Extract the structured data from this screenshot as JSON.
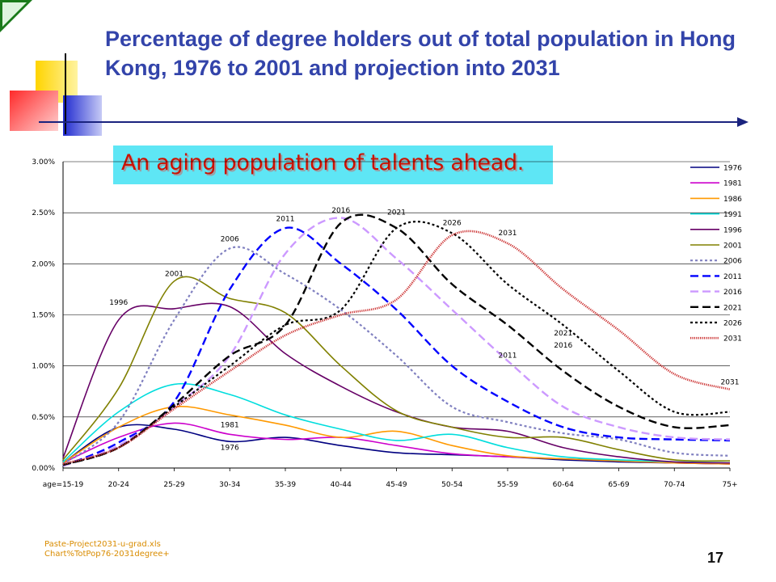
{
  "title": "Percentage of degree holders out of total population in Hong Kong, 1976 to 2001 and projection into 2031",
  "banner": "An aging population of talents ahead.",
  "source_lines": [
    "Paste-Project2031-u-grad.xls",
    "Chart%TotPop76-2031degree+"
  ],
  "page_number": "17",
  "chart_data": {
    "type": "line",
    "x": [
      "age=15-19",
      "20-24",
      "25-29",
      "30-34",
      "35-39",
      "40-44",
      "45-49",
      "50-54",
      "55-59",
      "60-64",
      "65-69",
      "70-74",
      "75+"
    ],
    "yticks": [
      "0.00%",
      "0.50%",
      "1.00%",
      "1.50%",
      "2.00%",
      "2.50%",
      "3.00%"
    ],
    "ylim": [
      0,
      3
    ],
    "y_unit": "%",
    "legend_position": "right",
    "series": [
      {
        "name": "1976",
        "color": "#000080",
        "dash": "solid",
        "values": [
          0.05,
          0.4,
          0.38,
          0.26,
          0.3,
          0.22,
          0.15,
          0.13,
          0.11,
          0.08,
          0.06,
          0.05,
          0.04
        ]
      },
      {
        "name": "1981",
        "color": "#cc00cc",
        "dash": "solid",
        "values": [
          0.05,
          0.3,
          0.44,
          0.33,
          0.28,
          0.3,
          0.22,
          0.14,
          0.11,
          0.09,
          0.07,
          0.05,
          0.04
        ]
      },
      {
        "name": "1986",
        "color": "#ff9900",
        "dash": "solid",
        "values": [
          0.05,
          0.4,
          0.6,
          0.52,
          0.42,
          0.3,
          0.36,
          0.22,
          0.12,
          0.09,
          0.07,
          0.05,
          0.04
        ]
      },
      {
        "name": "1991",
        "color": "#00dddd",
        "dash": "solid",
        "values": [
          0.06,
          0.55,
          0.82,
          0.72,
          0.52,
          0.38,
          0.27,
          0.33,
          0.2,
          0.11,
          0.08,
          0.06,
          0.05
        ]
      },
      {
        "name": "1996",
        "color": "#660066",
        "dash": "solid",
        "values": [
          0.1,
          1.45,
          1.56,
          1.58,
          1.12,
          0.8,
          0.55,
          0.4,
          0.36,
          0.2,
          0.11,
          0.06,
          0.05
        ]
      },
      {
        "name": "2001",
        "color": "#808000",
        "dash": "solid",
        "values": [
          0.08,
          0.78,
          1.83,
          1.66,
          1.52,
          1.0,
          0.56,
          0.4,
          0.3,
          0.3,
          0.18,
          0.08,
          0.07
        ]
      },
      {
        "name": "2006",
        "color": "#8080c0",
        "dash": "short",
        "values": [
          0.04,
          0.45,
          1.45,
          2.15,
          1.9,
          1.55,
          1.1,
          0.6,
          0.45,
          0.34,
          0.28,
          0.15,
          0.12
        ]
      },
      {
        "name": "2011",
        "color": "#0000ff",
        "dash": "long",
        "values": [
          0.02,
          0.25,
          0.65,
          1.75,
          2.35,
          2.0,
          1.55,
          1.0,
          0.65,
          0.4,
          0.3,
          0.28,
          0.27
        ]
      },
      {
        "name": "2016",
        "color": "#cc99ff",
        "dash": "long",
        "values": [
          0.02,
          0.22,
          0.6,
          1.1,
          2.1,
          2.45,
          2.05,
          1.55,
          1.05,
          0.6,
          0.4,
          0.3,
          0.28
        ]
      },
      {
        "name": "2021",
        "color": "#000000",
        "dash": "long",
        "values": [
          0.03,
          0.2,
          0.62,
          1.1,
          1.4,
          2.4,
          2.35,
          1.8,
          1.4,
          0.95,
          0.6,
          0.4,
          0.42
        ]
      },
      {
        "name": "2026",
        "color": "#000000",
        "dash": "short",
        "values": [
          0.03,
          0.2,
          0.6,
          1.0,
          1.4,
          1.55,
          2.35,
          2.3,
          1.8,
          1.4,
          0.95,
          0.55,
          0.55
        ]
      },
      {
        "name": "2031",
        "color": "#cc3333",
        "dash": "dotted",
        "values": [
          0.04,
          0.2,
          0.58,
          0.95,
          1.3,
          1.5,
          1.65,
          2.28,
          2.2,
          1.75,
          1.35,
          0.92,
          0.77
        ]
      }
    ],
    "annotations": [
      {
        "text": "1976",
        "x": 3,
        "y": 0.18
      },
      {
        "text": "1981",
        "x": 3,
        "y": 0.4
      },
      {
        "text": "1996",
        "x": 1,
        "y": 1.6
      },
      {
        "text": "2001",
        "x": 2,
        "y": 1.88
      },
      {
        "text": "2006",
        "x": 3,
        "y": 2.22
      },
      {
        "text": "2011",
        "x": 4,
        "y": 2.42
      },
      {
        "text": "2016",
        "x": 5,
        "y": 2.5
      },
      {
        "text": "2021",
        "x": 6,
        "y": 2.48
      },
      {
        "text": "2026",
        "x": 7,
        "y": 2.38
      },
      {
        "text": "2031",
        "x": 8,
        "y": 2.28
      },
      {
        "text": "2011",
        "x": 8,
        "y": 1.08
      },
      {
        "text": "2016",
        "x": 9,
        "y": 1.18
      },
      {
        "text": "2021",
        "x": 9,
        "y": 1.3
      },
      {
        "text": "2031",
        "x": 12,
        "y": 0.82
      }
    ]
  }
}
